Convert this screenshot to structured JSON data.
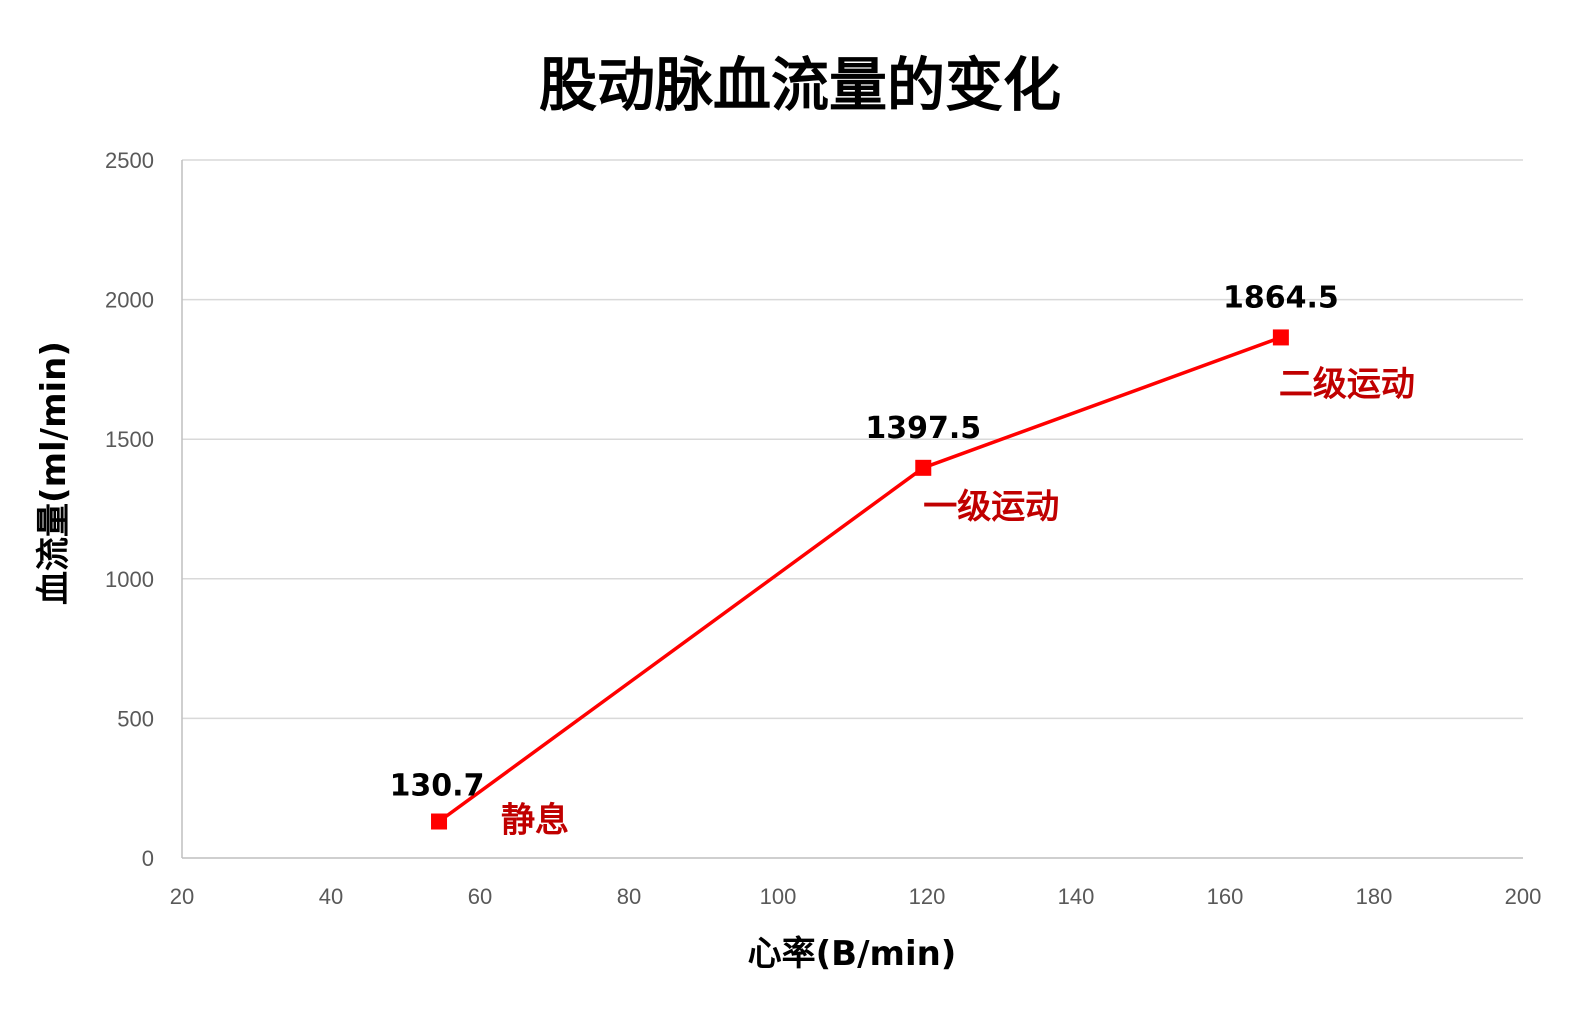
{
  "chart_data": {
    "type": "line",
    "title": "股动脉血流量的变化",
    "xlabel": "心率(B/min)",
    "ylabel": "血流量(ml/min)",
    "xlim": [
      20,
      200
    ],
    "ylim": [
      0,
      2500
    ],
    "x_ticks": [
      "20",
      "40",
      "60",
      "80",
      "100",
      "120",
      "140",
      "160",
      "180",
      "200"
    ],
    "y_ticks": [
      "0",
      "500",
      "1000",
      "1500",
      "2000",
      "2500"
    ],
    "grid": true,
    "legend": "none",
    "series": [
      {
        "x": [
          54.5,
          119.5,
          167.5
        ],
        "values": [
          130.7,
          1397.5,
          1864.5
        ],
        "data_labels": [
          "130.7",
          "1397.5",
          "1864.5"
        ],
        "color": "#ff0000",
        "marker": "square"
      }
    ],
    "annotations": [
      "静息",
      "一级运动",
      "二级运动"
    ],
    "annotation_color": "#c00000"
  }
}
